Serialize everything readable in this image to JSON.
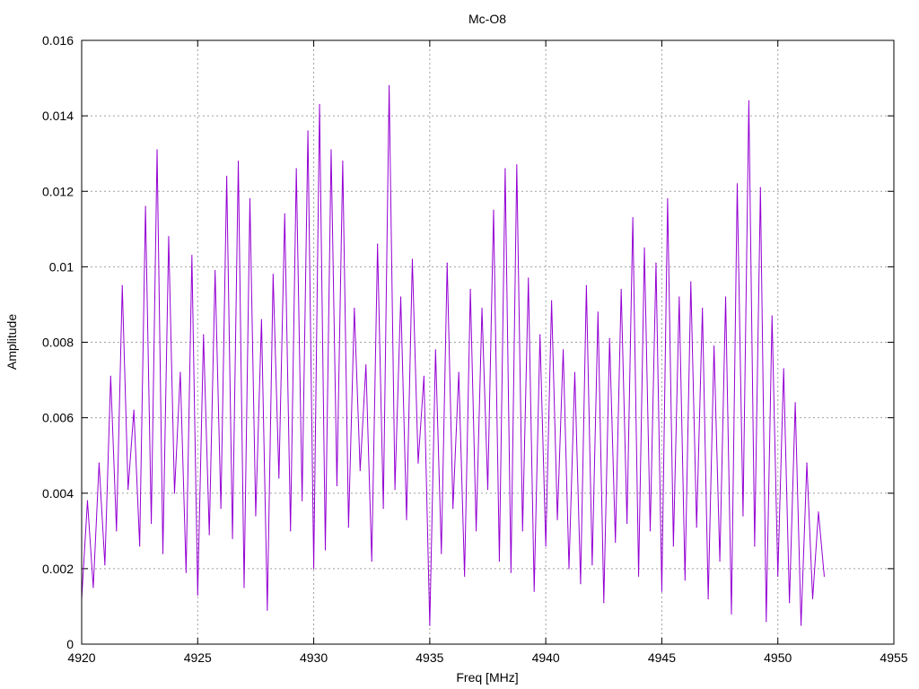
{
  "chart_data": {
    "type": "line",
    "title": "Mc-O8",
    "xlabel": "Freq [MHz]",
    "ylabel": "Amplitude",
    "xlim": [
      4920,
      4955
    ],
    "ylim": [
      0,
      0.016
    ],
    "x_ticks": [
      4920,
      4925,
      4930,
      4935,
      4940,
      4945,
      4950,
      4955
    ],
    "x_tick_labels": [
      "4920",
      "4925",
      "4930",
      "4935",
      "4940",
      "4945",
      "4950",
      "4955"
    ],
    "y_ticks": [
      0,
      0.002,
      0.004,
      0.006,
      0.008,
      0.01,
      0.012,
      0.014,
      0.016
    ],
    "y_tick_labels": [
      "0",
      "0.002",
      "0.004",
      "0.006",
      "0.008",
      "0.01",
      "0.012",
      "0.014",
      "0.016"
    ],
    "grid": true,
    "series": [
      {
        "color": "#9400d3",
        "x": [
          4920.0,
          4920.25,
          4920.5,
          4920.75,
          4921.0,
          4921.25,
          4921.5,
          4921.75,
          4922.0,
          4922.25,
          4922.5,
          4922.75,
          4923.0,
          4923.25,
          4923.5,
          4923.75,
          4924.0,
          4924.25,
          4924.5,
          4924.75,
          4925.0,
          4925.25,
          4925.5,
          4925.75,
          4926.0,
          4926.25,
          4926.5,
          4926.75,
          4927.0,
          4927.25,
          4927.5,
          4927.75,
          4928.0,
          4928.25,
          4928.5,
          4928.75,
          4929.0,
          4929.25,
          4929.5,
          4929.75,
          4930.0,
          4930.25,
          4930.5,
          4930.75,
          4931.0,
          4931.25,
          4931.5,
          4931.75,
          4932.0,
          4932.25,
          4932.5,
          4932.75,
          4933.0,
          4933.25,
          4933.5,
          4933.75,
          4934.0,
          4934.25,
          4934.5,
          4934.75,
          4935.0,
          4935.25,
          4935.5,
          4935.75,
          4936.0,
          4936.25,
          4936.5,
          4936.75,
          4937.0,
          4937.25,
          4937.5,
          4937.75,
          4938.0,
          4938.25,
          4938.5,
          4938.75,
          4939.0,
          4939.25,
          4939.5,
          4939.75,
          4940.0,
          4940.25,
          4940.5,
          4940.75,
          4941.0,
          4941.25,
          4941.5,
          4941.75,
          4942.0,
          4942.25,
          4942.5,
          4942.75,
          4943.0,
          4943.25,
          4943.5,
          4943.75,
          4944.0,
          4944.25,
          4944.5,
          4944.75,
          4945.0,
          4945.25,
          4945.5,
          4945.75,
          4946.0,
          4946.25,
          4946.5,
          4946.75,
          4947.0,
          4947.25,
          4947.5,
          4947.75,
          4948.0,
          4948.25,
          4948.5,
          4948.75,
          4949.0,
          4949.25,
          4949.5,
          4949.75,
          4950.0,
          4950.25,
          4950.5,
          4950.75,
          4951.0,
          4951.25,
          4951.5,
          4951.75,
          4952.0
        ],
        "y": [
          0.0012,
          0.0038,
          0.0015,
          0.0048,
          0.0021,
          0.0071,
          0.003,
          0.0095,
          0.0041,
          0.0062,
          0.0026,
          0.0116,
          0.0032,
          0.0131,
          0.0024,
          0.0108,
          0.004,
          0.0072,
          0.0019,
          0.0103,
          0.0013,
          0.0082,
          0.0029,
          0.0099,
          0.0036,
          0.0124,
          0.0028,
          0.0128,
          0.0015,
          0.0118,
          0.0034,
          0.0086,
          0.0009,
          0.0098,
          0.0044,
          0.0114,
          0.003,
          0.0126,
          0.0038,
          0.0136,
          0.002,
          0.0143,
          0.0025,
          0.0131,
          0.0042,
          0.0128,
          0.0031,
          0.0089,
          0.0046,
          0.0074,
          0.0022,
          0.0106,
          0.0036,
          0.0148,
          0.0041,
          0.0092,
          0.0033,
          0.0102,
          0.0048,
          0.0071,
          0.0005,
          0.0078,
          0.0024,
          0.0101,
          0.0036,
          0.0072,
          0.0018,
          0.0094,
          0.003,
          0.0089,
          0.0041,
          0.0115,
          0.0022,
          0.0126,
          0.0019,
          0.0127,
          0.003,
          0.0097,
          0.0014,
          0.0082,
          0.0026,
          0.0091,
          0.0033,
          0.0078,
          0.002,
          0.0072,
          0.0016,
          0.0095,
          0.0021,
          0.0088,
          0.0011,
          0.0081,
          0.0027,
          0.0094,
          0.0032,
          0.0113,
          0.0018,
          0.0105,
          0.003,
          0.0101,
          0.0014,
          0.0118,
          0.0026,
          0.0092,
          0.0017,
          0.0096,
          0.0031,
          0.0089,
          0.0012,
          0.0079,
          0.0022,
          0.0092,
          0.0008,
          0.0122,
          0.0034,
          0.0144,
          0.0026,
          0.0121,
          0.0006,
          0.0087,
          0.0018,
          0.0073,
          0.0011,
          0.0064,
          0.0005,
          0.0048,
          0.0012,
          0.0035,
          0.0018
        ]
      }
    ]
  }
}
